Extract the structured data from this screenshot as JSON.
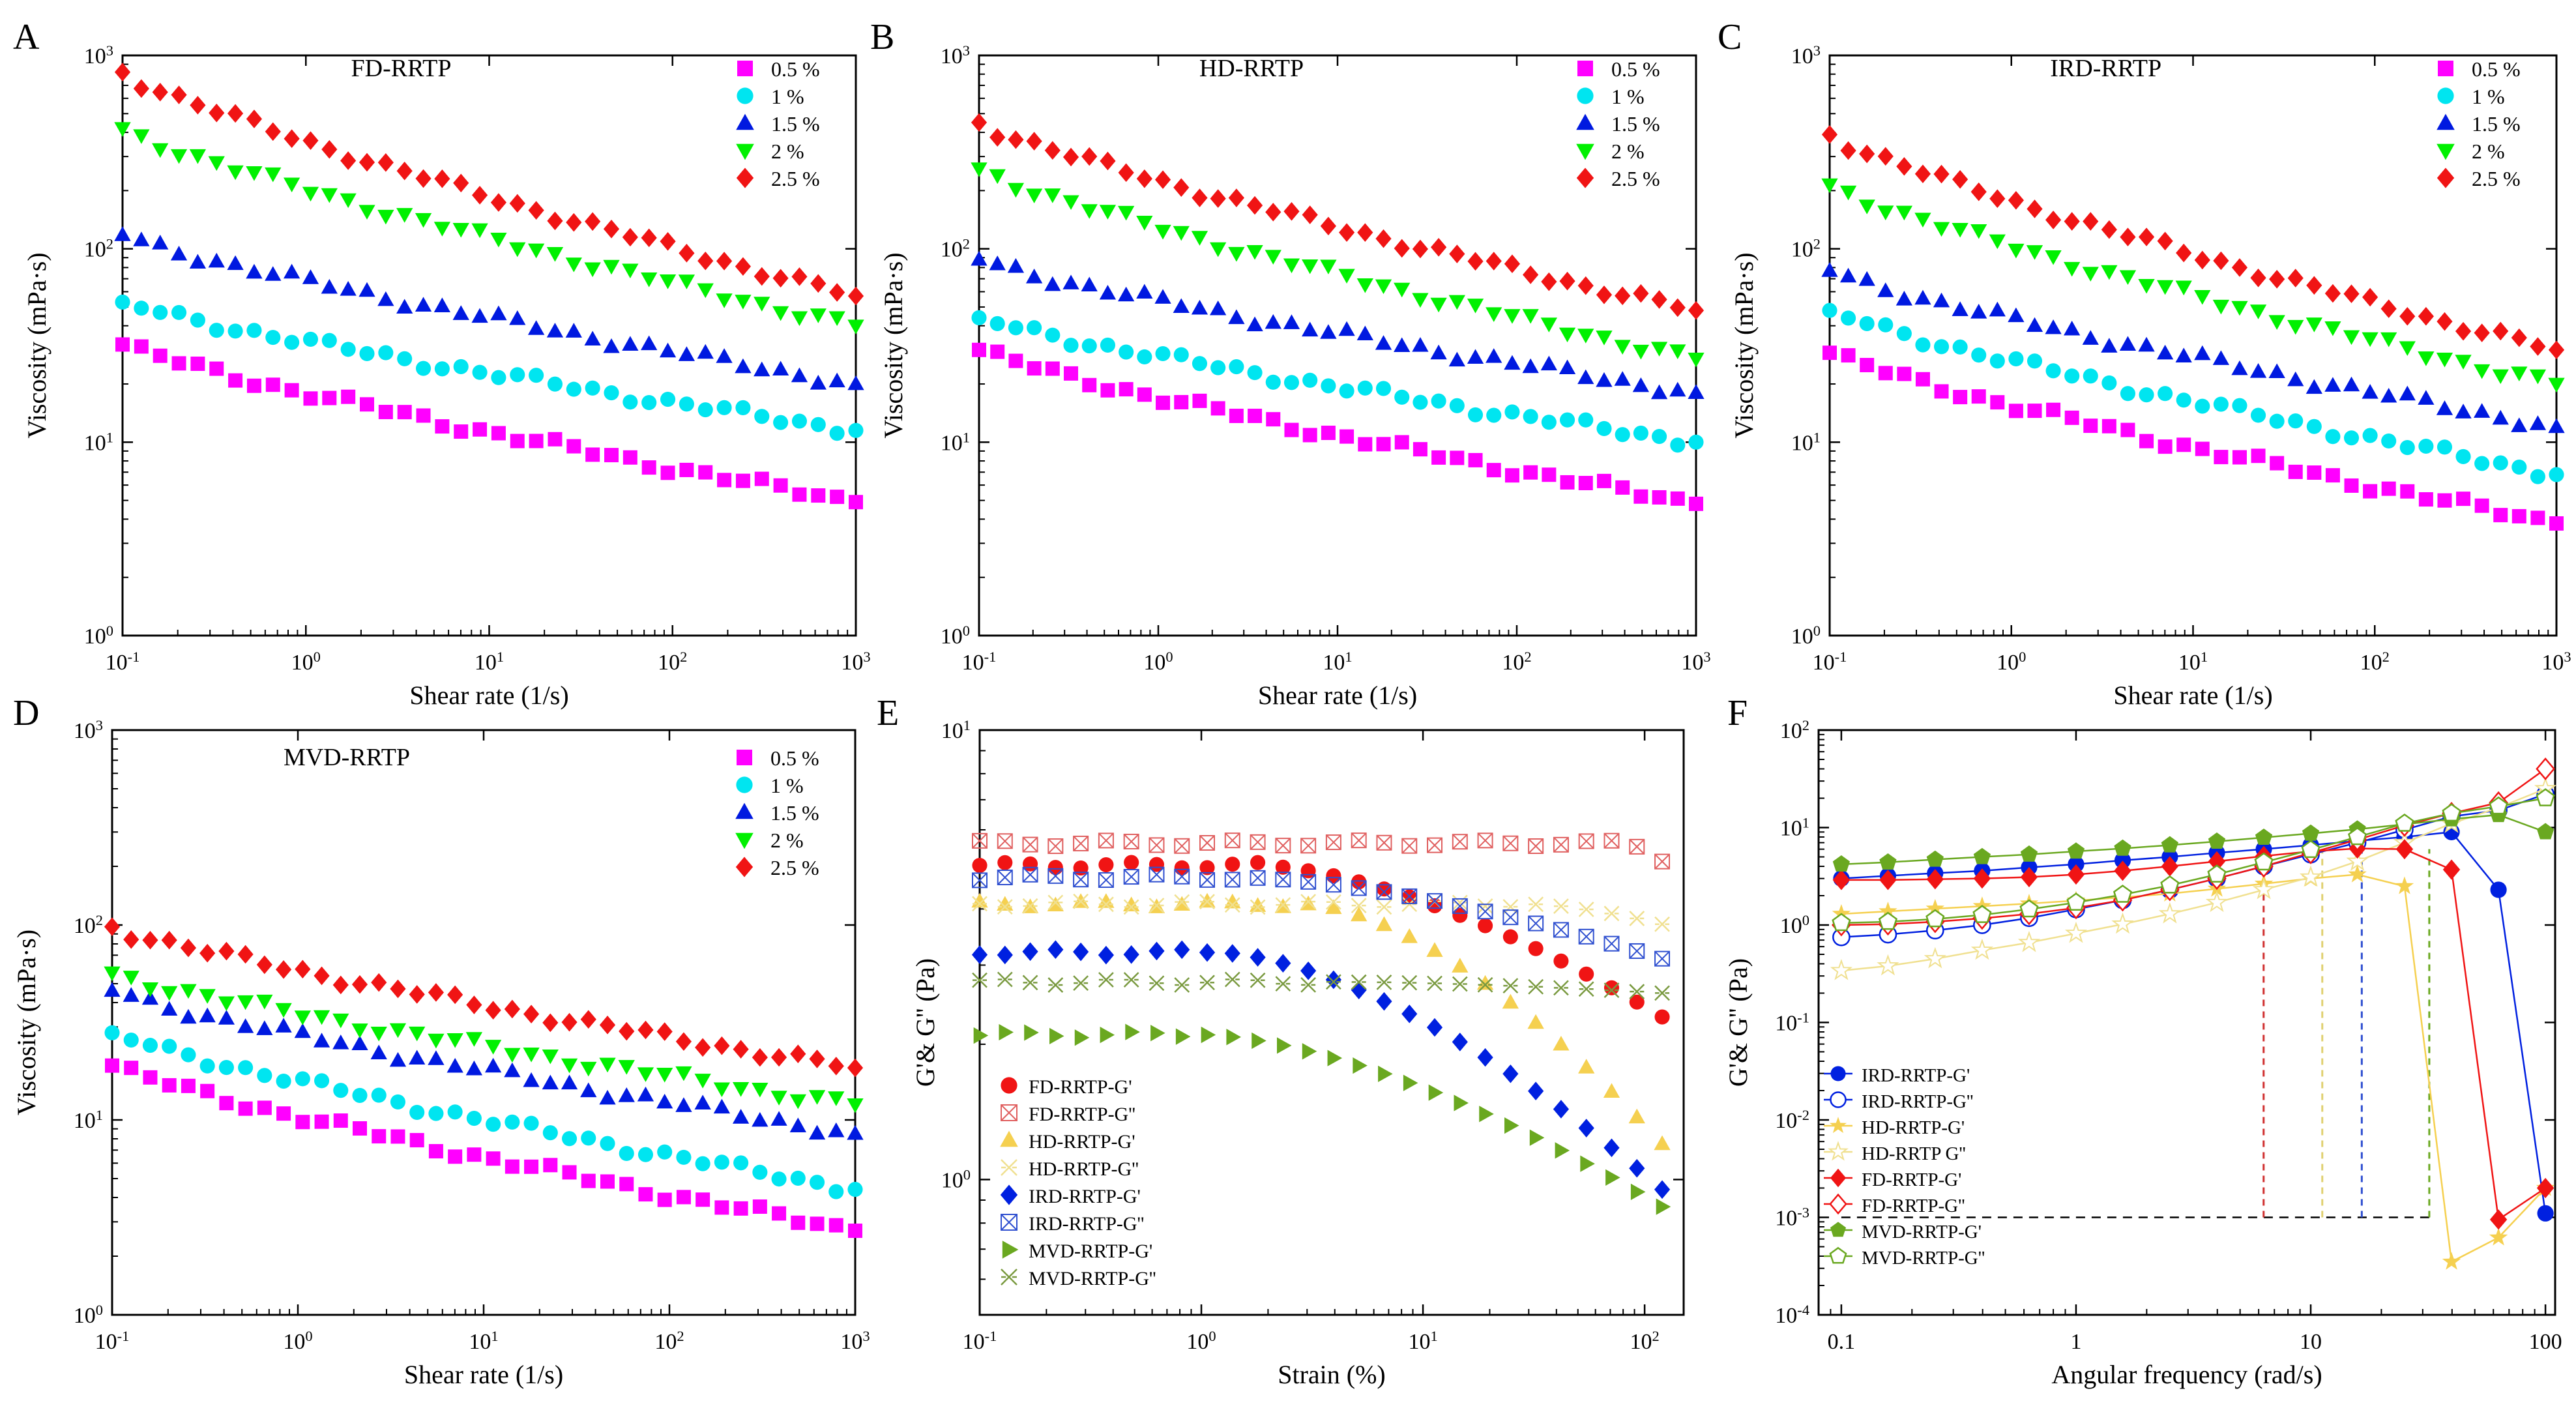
{
  "chart_data": [
    {
      "panel": "A",
      "type": "scatter",
      "title": "FD-RRTP",
      "xlabel": "Shear rate (1/s)",
      "ylabel": "Viscosity (mPa·s)",
      "xscale": "log",
      "yscale": "log",
      "xlim": [
        0.1,
        1000
      ],
      "ylim": [
        1,
        1000
      ],
      "xticks": [
        "10^-1",
        "10^0",
        "10^1",
        "10^2",
        "10^3"
      ],
      "yticks": [
        "10^0",
        "10^1",
        "10^2",
        "10^3"
      ],
      "legend": "top-right",
      "series": [
        {
          "name": "0.5 %",
          "marker": "square",
          "color": "#ff00ff",
          "start": 32,
          "end": 4.9
        },
        {
          "name": "1 %",
          "marker": "circle",
          "color": "#00e5f0",
          "start": 53,
          "end": 11.5
        },
        {
          "name": "1.5 %",
          "marker": "triangle-up",
          "color": "#0019e0",
          "start": 118,
          "end": 20
        },
        {
          "name": "2 %",
          "marker": "triangle-down",
          "color": "#00f000",
          "start": 420,
          "end": 40
        },
        {
          "name": "2.5 %",
          "marker": "diamond",
          "color": "#f01414",
          "start": 820,
          "end": 57
        }
      ]
    },
    {
      "panel": "B",
      "type": "scatter",
      "title": "HD-RRTP",
      "xlabel": "Shear rate (1/s)",
      "ylabel": "Viscosity (mPa·s)",
      "xscale": "log",
      "yscale": "log",
      "xlim": [
        0.1,
        1000
      ],
      "ylim": [
        1,
        1000
      ],
      "xticks": [
        "10^-1",
        "10^0",
        "10^1",
        "10^2",
        "10^3"
      ],
      "yticks": [
        "10^0",
        "10^1",
        "10^2",
        "10^3"
      ],
      "legend": "top-right",
      "series": [
        {
          "name": "0.5 %",
          "marker": "square",
          "color": "#ff00ff",
          "start": 30,
          "end": 4.8
        },
        {
          "name": "1 %",
          "marker": "circle",
          "color": "#00e5f0",
          "start": 44,
          "end": 10
        },
        {
          "name": "1.5 %",
          "marker": "triangle-up",
          "color": "#0019e0",
          "start": 88,
          "end": 18
        },
        {
          "name": "2 %",
          "marker": "triangle-down",
          "color": "#00f000",
          "start": 260,
          "end": 27
        },
        {
          "name": "2.5 %",
          "marker": "diamond",
          "color": "#f01414",
          "start": 450,
          "end": 48
        }
      ]
    },
    {
      "panel": "C",
      "type": "scatter",
      "title": "IRD-RRTP",
      "xlabel": "Shear rate (1/s)",
      "ylabel": "Viscosity (mPa·s)",
      "xscale": "log",
      "yscale": "log",
      "xlim": [
        0.1,
        1000
      ],
      "ylim": [
        1,
        1000
      ],
      "xticks": [
        "10^-1",
        "10^0",
        "10^1",
        "10^2",
        "10^3"
      ],
      "yticks": [
        "10^0",
        "10^1",
        "10^2",
        "10^3"
      ],
      "legend": "top-right",
      "series": [
        {
          "name": "0.5 %",
          "marker": "square",
          "color": "#ff00ff",
          "start": 29,
          "end": 3.8
        },
        {
          "name": "1 %",
          "marker": "circle",
          "color": "#00e5f0",
          "start": 48,
          "end": 6.8
        },
        {
          "name": "1.5 %",
          "marker": "triangle-up",
          "color": "#0019e0",
          "start": 77,
          "end": 12
        },
        {
          "name": "2 %",
          "marker": "triangle-down",
          "color": "#00f000",
          "start": 215,
          "end": 20
        },
        {
          "name": "2.5 %",
          "marker": "diamond",
          "color": "#f01414",
          "start": 390,
          "end": 30
        }
      ]
    },
    {
      "panel": "D",
      "type": "scatter",
      "title": "MVD-RRTP",
      "xlabel": "Shear rate (1/s)",
      "ylabel": "Viscosity (mPa·s)",
      "xscale": "log",
      "yscale": "log",
      "xlim": [
        0.1,
        1000
      ],
      "ylim": [
        1,
        1000
      ],
      "xticks": [
        "10^-1",
        "10^0",
        "10^1",
        "10^2",
        "10^3"
      ],
      "yticks": [
        "10^0",
        "10^1",
        "10^2",
        "10^3"
      ],
      "legend": "top-right",
      "series": [
        {
          "name": "0.5 %",
          "marker": "square",
          "color": "#ff00ff",
          "start": 19,
          "end": 2.7
        },
        {
          "name": "1 %",
          "marker": "circle",
          "color": "#00e5f0",
          "start": 28,
          "end": 4.4
        },
        {
          "name": "1.5 %",
          "marker": "triangle-up",
          "color": "#0019e0",
          "start": 46,
          "end": 8.5
        },
        {
          "name": "2 %",
          "marker": "triangle-down",
          "color": "#00f000",
          "start": 57,
          "end": 12
        },
        {
          "name": "2.5 %",
          "marker": "diamond",
          "color": "#f01414",
          "start": 98,
          "end": 18.5
        }
      ]
    },
    {
      "panel": "E",
      "type": "scatter",
      "xlabel": "Strain (%)",
      "ylabel": "G'& G'' (Pa)",
      "xscale": "log",
      "yscale": "log",
      "xlim": [
        0.1,
        150
      ],
      "ylim": [
        0.5,
        10
      ],
      "xticks": [
        "10^-1",
        "10^0",
        "10^1",
        "10^2"
      ],
      "yticks": [
        "10^0",
        "10^1"
      ],
      "legend": "bottom-left",
      "series": [
        {
          "name": "FD-RRTP-G'",
          "marker": "circle",
          "color": "#f01414",
          "filled": true,
          "plateau": 5.0,
          "end": 2.3,
          "onset": 1.8
        },
        {
          "name": "FD-RRTP-G''",
          "marker": "square-x",
          "color": "#e06060",
          "filled": false,
          "plateau": 5.6,
          "end": 5.1,
          "onset": 80
        },
        {
          "name": "HD-RRTP-G'",
          "marker": "triangle-up",
          "color": "#f5d050",
          "filled": true,
          "plateau": 4.1,
          "end": 1.2,
          "onset": 3
        },
        {
          "name": "HD-RRTP-G''",
          "marker": "x",
          "color": "#f0e090",
          "filled": false,
          "plateau": 4.1,
          "end": 3.7,
          "onset": 30
        },
        {
          "name": "IRD-RRTP-G'",
          "marker": "diamond",
          "color": "#0020e0",
          "filled": true,
          "plateau": 3.2,
          "end": 0.95,
          "onset": 1.2
        },
        {
          "name": "IRD-RRTP-G''",
          "marker": "square-x",
          "color": "#3050d0",
          "filled": false,
          "plateau": 4.7,
          "end": 3.1,
          "onset": 1.5
        },
        {
          "name": "MVD-RRTP-G'",
          "marker": "triangle-right",
          "color": "#6aa820",
          "filled": true,
          "plateau": 2.1,
          "end": 0.87,
          "onset": 1
        },
        {
          "name": "MVD-RRTP-G''",
          "marker": "x",
          "color": "#7a9a40",
          "filled": false,
          "plateau": 2.75,
          "end": 2.6,
          "onset": 5
        }
      ]
    },
    {
      "panel": "F",
      "type": "line",
      "xlabel": "Angular frequency (rad/s)",
      "ylabel": "G'& G'' (Pa)",
      "xscale": "log",
      "yscale": "log",
      "xlim": [
        0.08,
        110
      ],
      "ylim": [
        0.0001,
        100
      ],
      "xticks": [
        "0.1",
        "1",
        "10",
        "100"
      ],
      "yticks": [
        "10^-4",
        "10^-3",
        "10^-2",
        "10^-1",
        "10^0",
        "10^1",
        "10^2"
      ],
      "legend": "middle-left",
      "x": [
        0.1,
        0.158,
        0.251,
        0.398,
        0.631,
        1.0,
        1.58,
        2.51,
        3.98,
        6.31,
        10.0,
        15.8,
        25.1,
        39.8,
        63.1,
        100
      ],
      "series": [
        {
          "name": "IRD-RRTP-G'",
          "marker": "circle",
          "color": "#0020e0",
          "filled": true,
          "values": [
            3.0,
            3.2,
            3.4,
            3.6,
            3.9,
            4.2,
            4.6,
            5.0,
            5.5,
            6.0,
            6.6,
            7.3,
            8.0,
            9.0,
            2.3,
            0.0011
          ]
        },
        {
          "name": "IRD-RRTP-G''",
          "marker": "circle",
          "color": "#0020e0",
          "filled": false,
          "values": [
            0.75,
            0.8,
            0.88,
            1.0,
            1.18,
            1.45,
            1.8,
            2.3,
            3.0,
            4.0,
            5.3,
            7.0,
            9.5,
            13,
            15,
            22
          ]
        },
        {
          "name": "HD-RRTP-G'",
          "marker": "star",
          "color": "#f5d050",
          "filled": true,
          "values": [
            1.3,
            1.38,
            1.47,
            1.56,
            1.66,
            1.78,
            1.92,
            2.1,
            2.35,
            2.65,
            3.0,
            3.3,
            2.5,
            0.00035,
            0.00062,
            0.002
          ]
        },
        {
          "name": "HD-RRTP G''",
          "marker": "star",
          "color": "#f0e090",
          "filled": false,
          "values": [
            0.34,
            0.38,
            0.45,
            0.55,
            0.66,
            0.82,
            1.02,
            1.3,
            1.7,
            2.3,
            3.1,
            4.5,
            7,
            11,
            16,
            25
          ]
        },
        {
          "name": "FD-RRTP-G'",
          "marker": "diamond",
          "color": "#f01414",
          "filled": true,
          "values": [
            2.9,
            2.9,
            2.95,
            3.0,
            3.1,
            3.3,
            3.6,
            4.0,
            4.5,
            5.1,
            5.7,
            6.1,
            6.0,
            3.7,
            0.00095,
            0.002
          ]
        },
        {
          "name": "FD-RRTP-G''",
          "marker": "diamond",
          "color": "#f01414",
          "filled": false,
          "values": [
            1.0,
            1.02,
            1.08,
            1.17,
            1.3,
            1.5,
            1.8,
            2.3,
            3.0,
            4.0,
            5.5,
            7.5,
            10.5,
            14,
            18,
            40
          ]
        },
        {
          "name": "MVD-RRTP-G'",
          "marker": "pentagon",
          "color": "#6aa820",
          "filled": true,
          "values": [
            4.2,
            4.4,
            4.7,
            5.0,
            5.3,
            5.7,
            6.1,
            6.6,
            7.2,
            7.9,
            8.7,
            9.6,
            10.8,
            12.2,
            13.5,
            9.0
          ]
        },
        {
          "name": "MVD-RRTP-G''",
          "marker": "pentagon",
          "color": "#6aa820",
          "filled": false,
          "values": [
            1.05,
            1.08,
            1.15,
            1.27,
            1.45,
            1.7,
            2.05,
            2.55,
            3.3,
            4.4,
            5.9,
            8.0,
            11,
            14,
            16.5,
            20
          ]
        }
      ],
      "annotations": {
        "reference_level": 0.001,
        "crossover_x": [
          {
            "x": 6.3,
            "color": "#d03030"
          },
          {
            "x": 11.2,
            "color": "#e0d070"
          },
          {
            "x": 16.5,
            "color": "#3050d0"
          },
          {
            "x": 32,
            "color": "#6aa820"
          }
        ]
      }
    }
  ]
}
